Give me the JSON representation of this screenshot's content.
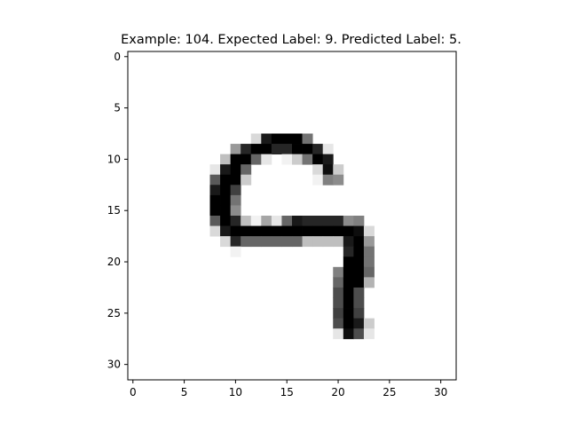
{
  "chart_data": {
    "type": "heatmap",
    "title": "Example: 104. Expected Label: 9. Predicted Label: 5.",
    "xlabel": "",
    "ylabel": "",
    "colormap": "gray_r",
    "grid": false,
    "xlim": [
      -0.5,
      31.5
    ],
    "ylim": [
      31.5,
      -0.5
    ],
    "x_ticks": [
      0,
      5,
      10,
      15,
      20,
      25,
      30
    ],
    "y_ticks": [
      0,
      5,
      10,
      15,
      20,
      25,
      30
    ],
    "x_tick_labels": [
      "0",
      "5",
      "10",
      "15",
      "20",
      "25",
      "30"
    ],
    "y_tick_labels": [
      "0",
      "5",
      "10",
      "15",
      "20",
      "25",
      "30"
    ],
    "shape": [
      32,
      32
    ],
    "pixels": [
      [
        8,
        12,
        0.15
      ],
      [
        8,
        13,
        0.9
      ],
      [
        8,
        14,
        1.0
      ],
      [
        8,
        15,
        1.0
      ],
      [
        8,
        16,
        1.0
      ],
      [
        8,
        17,
        0.55
      ],
      [
        9,
        10,
        0.4
      ],
      [
        9,
        11,
        0.85
      ],
      [
        9,
        12,
        1.0
      ],
      [
        9,
        13,
        1.0
      ],
      [
        9,
        14,
        0.85
      ],
      [
        9,
        15,
        0.85
      ],
      [
        9,
        16,
        1.0
      ],
      [
        9,
        17,
        1.0
      ],
      [
        9,
        18,
        0.85
      ],
      [
        9,
        19,
        0.1
      ],
      [
        10,
        9,
        0.25
      ],
      [
        10,
        10,
        1.0
      ],
      [
        10,
        11,
        1.0
      ],
      [
        10,
        12,
        0.6
      ],
      [
        10,
        13,
        0.1
      ],
      [
        10,
        15,
        0.05
      ],
      [
        10,
        16,
        0.2
      ],
      [
        10,
        17,
        0.55
      ],
      [
        10,
        18,
        1.0
      ],
      [
        10,
        19,
        0.9
      ],
      [
        11,
        8,
        0.1
      ],
      [
        11,
        9,
        0.9
      ],
      [
        11,
        10,
        1.0
      ],
      [
        11,
        11,
        0.6
      ],
      [
        11,
        18,
        0.15
      ],
      [
        11,
        19,
        0.95
      ],
      [
        11,
        20,
        0.2
      ],
      [
        12,
        8,
        0.65
      ],
      [
        12,
        9,
        1.0
      ],
      [
        12,
        10,
        1.0
      ],
      [
        12,
        11,
        0.2
      ],
      [
        12,
        18,
        0.05
      ],
      [
        12,
        19,
        0.5
      ],
      [
        12,
        20,
        0.45
      ],
      [
        13,
        8,
        0.9
      ],
      [
        13,
        9,
        1.0
      ],
      [
        13,
        10,
        0.75
      ],
      [
        14,
        8,
        1.0
      ],
      [
        14,
        9,
        1.0
      ],
      [
        14,
        10,
        0.55
      ],
      [
        15,
        8,
        1.0
      ],
      [
        15,
        9,
        1.0
      ],
      [
        15,
        10,
        0.45
      ],
      [
        16,
        8,
        0.65
      ],
      [
        16,
        9,
        1.0
      ],
      [
        16,
        10,
        0.85
      ],
      [
        16,
        11,
        0.25
      ],
      [
        16,
        12,
        0.05
      ],
      [
        16,
        13,
        0.35
      ],
      [
        16,
        14,
        0.1
      ],
      [
        16,
        15,
        0.6
      ],
      [
        16,
        16,
        0.9
      ],
      [
        16,
        17,
        0.85
      ],
      [
        16,
        18,
        0.85
      ],
      [
        16,
        19,
        0.85
      ],
      [
        16,
        20,
        0.85
      ],
      [
        16,
        21,
        0.45
      ],
      [
        16,
        22,
        0.5
      ],
      [
        17,
        8,
        0.15
      ],
      [
        17,
        9,
        0.9
      ],
      [
        17,
        10,
        1.0
      ],
      [
        17,
        11,
        1.0
      ],
      [
        17,
        12,
        1.0
      ],
      [
        17,
        13,
        1.0
      ],
      [
        17,
        14,
        1.0
      ],
      [
        17,
        15,
        1.0
      ],
      [
        17,
        16,
        1.0
      ],
      [
        17,
        17,
        1.0
      ],
      [
        17,
        18,
        1.0
      ],
      [
        17,
        19,
        1.0
      ],
      [
        17,
        20,
        1.0
      ],
      [
        17,
        21,
        1.0
      ],
      [
        17,
        22,
        0.95
      ],
      [
        17,
        23,
        0.15
      ],
      [
        18,
        9,
        0.15
      ],
      [
        18,
        10,
        0.85
      ],
      [
        18,
        11,
        0.6
      ],
      [
        18,
        12,
        0.6
      ],
      [
        18,
        13,
        0.6
      ],
      [
        18,
        14,
        0.6
      ],
      [
        18,
        15,
        0.6
      ],
      [
        18,
        16,
        0.6
      ],
      [
        18,
        17,
        0.25
      ],
      [
        18,
        18,
        0.25
      ],
      [
        18,
        19,
        0.25
      ],
      [
        18,
        20,
        0.25
      ],
      [
        18,
        21,
        0.9
      ],
      [
        18,
        22,
        1.0
      ],
      [
        18,
        23,
        0.4
      ],
      [
        19,
        10,
        0.05
      ],
      [
        19,
        21,
        0.85
      ],
      [
        19,
        22,
        1.0
      ],
      [
        19,
        23,
        0.55
      ],
      [
        20,
        21,
        1.0
      ],
      [
        20,
        22,
        1.0
      ],
      [
        20,
        23,
        0.55
      ],
      [
        21,
        20,
        0.5
      ],
      [
        21,
        21,
        1.0
      ],
      [
        21,
        22,
        1.0
      ],
      [
        21,
        23,
        0.6
      ],
      [
        22,
        20,
        0.6
      ],
      [
        22,
        21,
        1.0
      ],
      [
        22,
        22,
        1.0
      ],
      [
        22,
        23,
        0.3
      ],
      [
        23,
        20,
        0.7
      ],
      [
        23,
        21,
        1.0
      ],
      [
        23,
        22,
        0.7
      ],
      [
        24,
        20,
        0.7
      ],
      [
        24,
        21,
        1.0
      ],
      [
        24,
        22,
        0.7
      ],
      [
        25,
        20,
        0.75
      ],
      [
        25,
        21,
        1.0
      ],
      [
        25,
        22,
        0.75
      ],
      [
        26,
        20,
        0.7
      ],
      [
        26,
        21,
        1.0
      ],
      [
        26,
        22,
        0.9
      ],
      [
        26,
        23,
        0.2
      ],
      [
        27,
        20,
        0.1
      ],
      [
        27,
        21,
        0.95
      ],
      [
        27,
        22,
        0.7
      ],
      [
        27,
        23,
        0.1
      ]
    ]
  }
}
